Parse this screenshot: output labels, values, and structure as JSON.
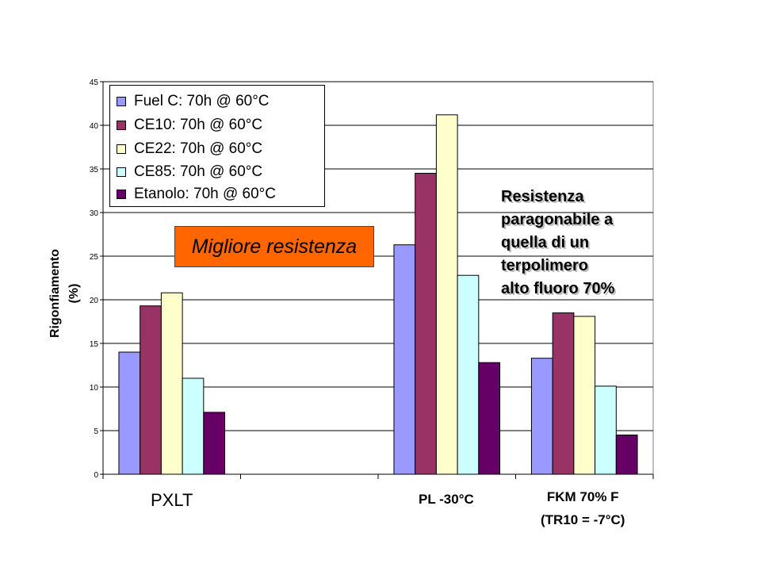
{
  "chart_data": {
    "type": "bar",
    "ylabel": [
      "Rigonfiamento",
      "(%)"
    ],
    "ylim": [
      0,
      45
    ],
    "yticks": [
      "0",
      "5",
      "10",
      "15",
      "20",
      "25",
      "30",
      "35",
      "40",
      "45"
    ],
    "grid": true,
    "legend_position": "top-left",
    "categories": [
      "PXLT",
      "",
      "PL -30°C",
      "FKM 70% F"
    ],
    "category_sublabels": [
      "",
      "",
      "",
      "(TR10 = -7°C)"
    ],
    "series": [
      {
        "name": "Fuel C: 70h @ 60°C",
        "color": "#9999ff",
        "values": [
          14.0,
          null,
          26.3,
          13.3
        ]
      },
      {
        "name": "CE10: 70h @ 60°C",
        "color": "#993366",
        "values": [
          19.3,
          null,
          34.5,
          18.5
        ]
      },
      {
        "name": "CE22: 70h @ 60°C",
        "color": "#ffffcc",
        "values": [
          20.8,
          null,
          41.2,
          18.1
        ]
      },
      {
        "name": "CE85: 70h @ 60°C",
        "color": "#ccffff",
        "values": [
          11.0,
          null,
          22.8,
          10.1
        ]
      },
      {
        "name": "Etanolo: 70h @ 60°C",
        "color": "#660066",
        "values": [
          7.1,
          null,
          12.8,
          4.5
        ]
      }
    ]
  },
  "annotations": {
    "callout": "Migliore resistenza",
    "callout_color": "#ff6600",
    "note_lines": [
      "Resistenza",
      "paragonabile a",
      "quella di un",
      "terpolimero",
      "alto fluoro 70%"
    ]
  }
}
